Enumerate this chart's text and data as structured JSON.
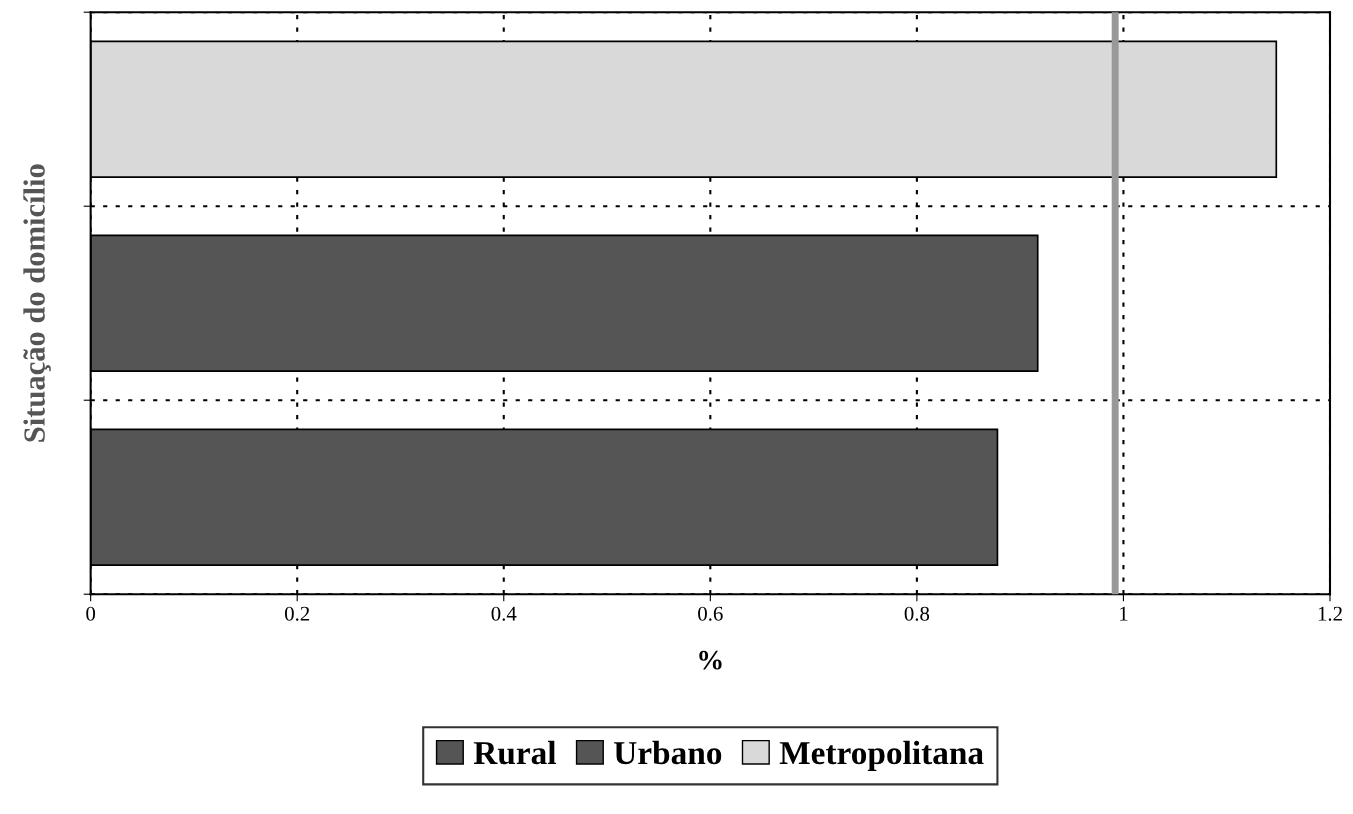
{
  "chart_data": {
    "type": "bar",
    "orientation": "horizontal",
    "ylabel": "Situação do domicílio",
    "xlabel": "%",
    "categories": [
      null,
      null,
      null
    ],
    "series": [
      {
        "name": "Rural",
        "color": "#555555",
        "values": [
          null,
          null,
          0.878
        ]
      },
      {
        "name": "Urbano",
        "color": "#555555",
        "values": [
          null,
          0.917,
          null
        ]
      },
      {
        "name": "Metropolitana",
        "color": "#d9d9d9",
        "values": [
          1.148,
          null,
          null
        ]
      }
    ],
    "xlim": [
      0,
      1.2
    ],
    "xticks": [
      0,
      0.2,
      0.4,
      0.6,
      0.8,
      1,
      1.2
    ],
    "ref_lines": [
      {
        "axis": "x",
        "value": 0.992,
        "color": "#999999",
        "line_style": "solid"
      }
    ],
    "grid": true,
    "legend": "bottom"
  }
}
